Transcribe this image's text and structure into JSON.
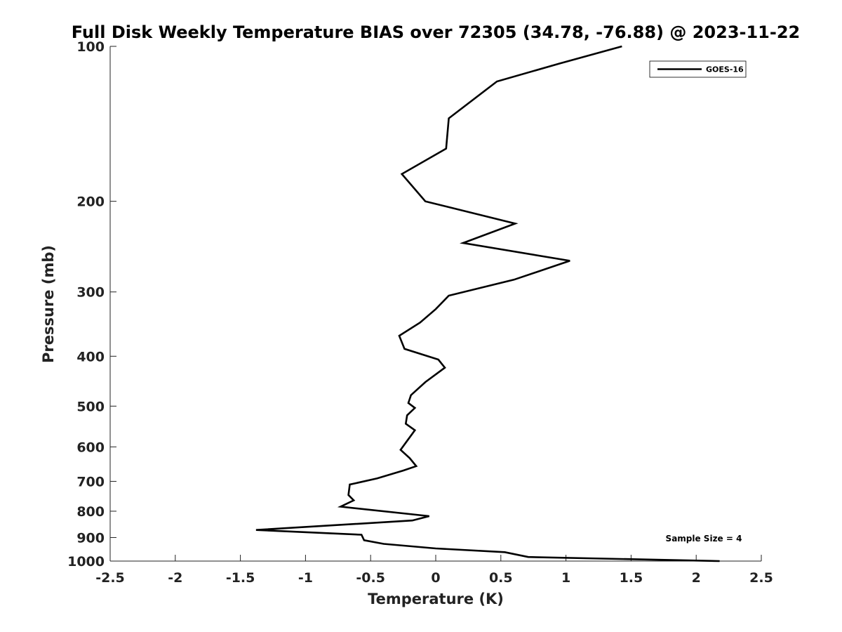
{
  "chart_data": {
    "type": "line",
    "title": "Full Disk Weekly Temperature BIAS over 72305 (34.78, -76.88) @ 2023-11-22",
    "xlabel": "Temperature (K)",
    "ylabel": "Pressure (mb)",
    "xlim": [
      -2.5,
      2.5
    ],
    "ylim": [
      1000,
      100
    ],
    "y_scale": "log",
    "y_reversed": true,
    "x_ticks": [
      -2.5,
      -2,
      -1.5,
      -1,
      -0.5,
      0,
      0.5,
      1,
      1.5,
      2,
      2.5
    ],
    "x_tick_labels": [
      "-2.5",
      "-2",
      "-1.5",
      "-1",
      "-0.5",
      "0",
      "0.5",
      "1",
      "1.5",
      "2",
      "2.5"
    ],
    "y_ticks": [
      100,
      200,
      300,
      400,
      500,
      600,
      700,
      800,
      900,
      1000
    ],
    "y_tick_labels": [
      "100",
      "200",
      "300",
      "400",
      "500",
      "600",
      "700",
      "800",
      "900",
      "1000"
    ],
    "grid": false,
    "legend_position": "top-right",
    "series": [
      {
        "name": "GOES-16",
        "color": "#000000",
        "points": [
          [
            1.43,
            100
          ],
          [
            0.95,
            108
          ],
          [
            0.47,
            117
          ],
          [
            0.1,
            138
          ],
          [
            0.08,
            158
          ],
          [
            -0.26,
            177
          ],
          [
            -0.08,
            200
          ],
          [
            0.61,
            221
          ],
          [
            0.21,
            241
          ],
          [
            1.03,
            261
          ],
          [
            0.6,
            284
          ],
          [
            0.1,
            305
          ],
          [
            0.0,
            324
          ],
          [
            -0.12,
            344
          ],
          [
            -0.28,
            365
          ],
          [
            -0.24,
            387
          ],
          [
            0.02,
            406
          ],
          [
            0.07,
            421
          ],
          [
            -0.08,
            449
          ],
          [
            -0.19,
            476
          ],
          [
            -0.21,
            493
          ],
          [
            -0.16,
            504
          ],
          [
            -0.22,
            521
          ],
          [
            -0.23,
            541
          ],
          [
            -0.16,
            557
          ],
          [
            -0.22,
            584
          ],
          [
            -0.27,
            608
          ],
          [
            -0.2,
            631
          ],
          [
            -0.15,
            654
          ],
          [
            -0.25,
            667
          ],
          [
            -0.45,
            691
          ],
          [
            -0.66,
            710
          ],
          [
            -0.67,
            744
          ],
          [
            -0.63,
            762
          ],
          [
            -0.73,
            784
          ],
          [
            -0.05,
            818
          ],
          [
            -0.18,
            834
          ],
          [
            -1.38,
            870
          ],
          [
            -0.57,
            889
          ],
          [
            -0.55,
            911
          ],
          [
            -0.4,
            926
          ],
          [
            0.0,
            945
          ],
          [
            0.53,
            961
          ],
          [
            0.71,
            982
          ],
          [
            2.18,
            1000
          ]
        ]
      }
    ],
    "annotations": [
      "Sample Size = 4"
    ]
  }
}
